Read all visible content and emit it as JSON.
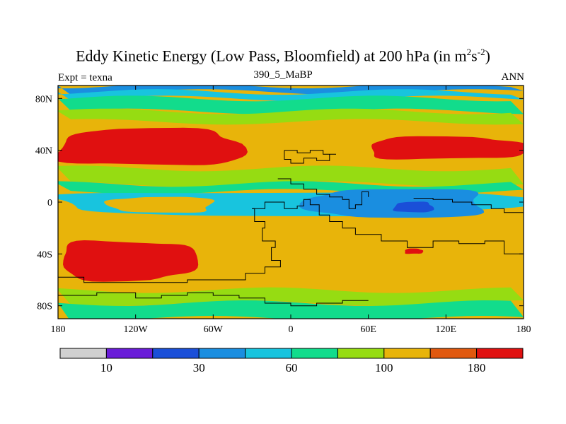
{
  "title": {
    "main": "Eddy Kinetic Energy (Low Pass, Bloomfield) at 200 hPa (in m",
    "sup1": "2",
    "mid": "s",
    "sup2": "-2",
    "end": ")"
  },
  "subtitle": "390_5_MaBP",
  "left_label": "Expt = texna",
  "right_label": "ANN",
  "chart_data": {
    "type": "heatmap",
    "title": "Eddy Kinetic Energy (Low Pass, Bloomfield) at 200 hPa (in m^2 s^-2)",
    "subtitle": "390_5_MaBP",
    "xlabel": "",
    "ylabel": "",
    "xlim": [
      -180,
      180
    ],
    "ylim": [
      -90,
      90
    ],
    "x_ticks": [
      {
        "value": -180,
        "label": "180"
      },
      {
        "value": -120,
        "label": "120W"
      },
      {
        "value": -60,
        "label": "60W"
      },
      {
        "value": 0,
        "label": "0"
      },
      {
        "value": 60,
        "label": "60E"
      },
      {
        "value": 120,
        "label": "120E"
      },
      {
        "value": 180,
        "label": "180"
      }
    ],
    "y_ticks": [
      {
        "value": 80,
        "label": "80N"
      },
      {
        "value": 40,
        "label": "40N"
      },
      {
        "value": 0,
        "label": "0"
      },
      {
        "value": -40,
        "label": "40S"
      },
      {
        "value": -80,
        "label": "80S"
      }
    ],
    "levels": [
      10,
      20,
      30,
      40,
      60,
      80,
      100,
      140,
      180
    ],
    "level_colors": [
      "#d0d0d0",
      "#6a1cd8",
      "#1a4fd8",
      "#1a8ee0",
      "#18c4de",
      "#12dc8c",
      "#96dc12",
      "#e8b40a",
      "#e0580e",
      "#e01010"
    ],
    "colorbar_labels": [
      {
        "index": 1,
        "label": "10"
      },
      {
        "index": 3,
        "label": "30"
      },
      {
        "index": 5,
        "label": "60"
      },
      {
        "index": 7,
        "label": "100"
      },
      {
        "index": 9,
        "label": "180"
      }
    ],
    "background_level": 7,
    "zonal_bands": [
      {
        "lat_range": [
          85,
          90
        ],
        "level": 3
      },
      {
        "lat_range": [
          80,
          85
        ],
        "level": 4
      },
      {
        "lat_range": [
          70,
          80
        ],
        "level": 5
      },
      {
        "lat_range": [
          62,
          70
        ],
        "level": 6
      },
      {
        "lat_range": [
          14,
          26
        ],
        "level": 6
      },
      {
        "lat_range": [
          8,
          14
        ],
        "level": 5
      },
      {
        "lat_range": [
          -78,
          -68
        ],
        "level": 6
      },
      {
        "lat_range": [
          -90,
          -78
        ],
        "level": 5
      }
    ],
    "regions": [
      {
        "name": "north-atlantic-max",
        "lon_range": [
          -180,
          -38
        ],
        "lat_range": [
          28,
          56
        ],
        "level": 9
      },
      {
        "name": "north-pacific-max",
        "lon_range": [
          60,
          180
        ],
        "lat_range": [
          33,
          50
        ],
        "level": 9
      },
      {
        "name": "southern-ocean-max",
        "lon_range": [
          -178,
          -74
        ],
        "lat_range": [
          -60,
          -30
        ],
        "level": 9
      },
      {
        "name": "tropical-pacific",
        "lon_range": [
          -180,
          180
        ],
        "lat_range": [
          -10,
          8
        ],
        "level": 4
      },
      {
        "name": "tropical-east-pacific",
        "lon_range": [
          -140,
          -60
        ],
        "lat_range": [
          -8,
          4
        ],
        "level": 7
      },
      {
        "name": "indian-ocean-low",
        "lon_range": [
          15,
          150
        ],
        "lat_range": [
          -12,
          10
        ],
        "level": 3
      },
      {
        "name": "indian-ocean-min",
        "lon_range": [
          80,
          110
        ],
        "lat_range": [
          -8,
          0
        ],
        "level": 2
      },
      {
        "name": "south-indian-spot",
        "lon_range": [
          88,
          102
        ],
        "lat_range": [
          -40,
          -36
        ],
        "level": 9
      }
    ],
    "contour_lines": "continental outlines (paleogeography)",
    "colorbar_orientation": "horizontal-bottom"
  }
}
